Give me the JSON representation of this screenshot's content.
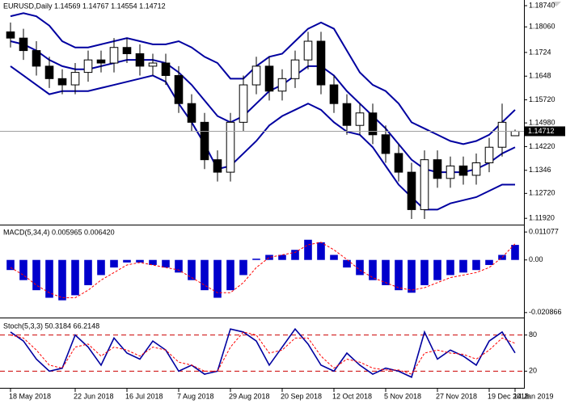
{
  "chart_data": [
    {
      "type": "candlestick",
      "title": "EURUSD,Daily 1.14569 1.14767 1.14554 1.14712",
      "categories": [
        "18 May 2018",
        null,
        null,
        null,
        null,
        "22 Jun 2018",
        null,
        null,
        null,
        "16 Jul 2018",
        null,
        null,
        null,
        "7 Aug 2018",
        null,
        null,
        null,
        "29 Aug 2018",
        null,
        null,
        null,
        "20 Sep 2018",
        null,
        null,
        null,
        "12 Oct 2018",
        null,
        null,
        null,
        "5 Nov 2018",
        null,
        null,
        null,
        "27 Nov 2018",
        null,
        null,
        null,
        "19 Dec 2018",
        null,
        "14 Jan 2019"
      ],
      "open": [
        1.179,
        1.177,
        1.173,
        1.168,
        1.164,
        1.162,
        1.166,
        1.17,
        1.169,
        1.174,
        1.172,
        1.168,
        1.169,
        1.165,
        1.156,
        1.15,
        1.138,
        1.134,
        1.15,
        1.162,
        1.168,
        1.16,
        1.164,
        1.17,
        1.176,
        1.162,
        1.156,
        1.149,
        1.153,
        1.146,
        1.14,
        1.134,
        1.122,
        1.138,
        1.132,
        1.136,
        1.133,
        1.137,
        1.142,
        1.14569
      ],
      "high": [
        1.182,
        1.18,
        1.176,
        1.171,
        1.167,
        1.169,
        1.173,
        1.173,
        1.177,
        1.177,
        1.175,
        1.172,
        1.172,
        1.168,
        1.159,
        1.153,
        1.141,
        1.153,
        1.165,
        1.171,
        1.171,
        1.167,
        1.173,
        1.179,
        1.179,
        1.165,
        1.159,
        1.156,
        1.156,
        1.149,
        1.143,
        1.137,
        1.141,
        1.141,
        1.139,
        1.139,
        1.14,
        1.145,
        1.156,
        1.14767
      ],
      "low": [
        1.174,
        1.17,
        1.165,
        1.161,
        1.159,
        1.159,
        1.163,
        1.166,
        1.166,
        1.169,
        1.165,
        1.165,
        1.162,
        1.153,
        1.147,
        1.135,
        1.131,
        1.131,
        1.147,
        1.159,
        1.157,
        1.157,
        1.161,
        1.167,
        1.159,
        1.153,
        1.146,
        1.146,
        1.143,
        1.137,
        1.131,
        1.119,
        1.119,
        1.129,
        1.129,
        1.13,
        1.13,
        1.134,
        1.139,
        1.14554
      ],
      "close": [
        1.177,
        1.173,
        1.168,
        1.164,
        1.162,
        1.166,
        1.17,
        1.169,
        1.174,
        1.172,
        1.168,
        1.169,
        1.165,
        1.156,
        1.15,
        1.138,
        1.134,
        1.15,
        1.162,
        1.168,
        1.16,
        1.164,
        1.17,
        1.176,
        1.162,
        1.156,
        1.149,
        1.153,
        1.146,
        1.14,
        1.134,
        1.122,
        1.138,
        1.132,
        1.136,
        1.133,
        1.137,
        1.142,
        1.15,
        1.14712
      ],
      "color": "#000000",
      "overlays": [
        {
          "color": "#0000a0",
          "values": [
            1.184,
            1.185,
            1.184,
            1.181,
            1.176,
            1.174,
            1.174,
            1.175,
            1.176,
            1.177,
            1.176,
            1.175,
            1.175,
            1.176,
            1.174,
            1.171,
            1.169,
            1.164,
            1.164,
            1.168,
            1.171,
            1.172,
            1.176,
            1.18,
            1.182,
            1.18,
            1.173,
            1.166,
            1.162,
            1.16,
            1.156,
            1.15,
            1.148,
            1.146,
            1.144,
            1.143,
            1.144,
            1.146,
            1.15,
            1.154
          ]
        },
        {
          "color": "#0000a0",
          "values": [
            1.176,
            1.175,
            1.173,
            1.17,
            1.168,
            1.167,
            1.167,
            1.168,
            1.169,
            1.17,
            1.17,
            1.17,
            1.169,
            1.166,
            1.162,
            1.157,
            1.152,
            1.15,
            1.152,
            1.156,
            1.16,
            1.162,
            1.165,
            1.168,
            1.168,
            1.165,
            1.16,
            1.156,
            1.152,
            1.148,
            1.143,
            1.138,
            1.135,
            1.134,
            1.134,
            1.134,
            1.135,
            1.137,
            1.14,
            1.142
          ]
        },
        {
          "color": "#0000a0",
          "values": [
            1.168,
            1.165,
            1.162,
            1.159,
            1.16,
            1.16,
            1.16,
            1.161,
            1.162,
            1.163,
            1.164,
            1.165,
            1.163,
            1.156,
            1.15,
            1.143,
            1.135,
            1.136,
            1.14,
            1.144,
            1.149,
            1.152,
            1.154,
            1.156,
            1.154,
            1.15,
            1.147,
            1.146,
            1.142,
            1.136,
            1.13,
            1.126,
            1.122,
            1.122,
            1.124,
            1.125,
            1.126,
            1.128,
            1.13,
            1.13
          ]
        }
      ],
      "price_line_color": "#a0a0a0",
      "ylim": [
        1.1177,
        1.1887
      ],
      "yticks": [
        {
          "value": 1.1874,
          "label": "1.18740"
        },
        {
          "value": 1.1806,
          "label": "1.18060"
        },
        1.1724,
        1.1648,
        {
          "value": 1.1572,
          "label": "1.15720"
        },
        {
          "value": 1.1498,
          "label": "1.14980"
        },
        {
          "value": 1.1422,
          "label": "1.14220"
        },
        1.1346,
        {
          "value": 1.1272,
          "label": "1.12720"
        },
        {
          "value": 1.1192,
          "label": "1.11920"
        }
      ]
    },
    {
      "type": "bar",
      "title": "MACD(5,34,4) 0.005965 0.006420",
      "series": [
        {
          "type": "bar",
          "color": "#0000cc",
          "values": [
            -0.004,
            -0.008,
            -0.012,
            -0.015,
            -0.016,
            -0.014,
            -0.01,
            -0.006,
            -0.003,
            -0.001,
            -0.001,
            -0.002,
            -0.003,
            -0.005,
            -0.008,
            -0.012,
            -0.015,
            -0.012,
            -0.006,
            0.0005,
            0.002,
            0.002,
            0.004,
            0.008,
            0.007,
            0.002,
            -0.003,
            -0.006,
            -0.008,
            -0.01,
            -0.012,
            -0.013,
            -0.01,
            -0.008,
            -0.006,
            -0.005,
            -0.004,
            -0.002,
            0.002,
            0.005965
          ]
        },
        {
          "type": "line",
          "color": "#ff0000",
          "dash": true,
          "values": [
            -0.003,
            -0.006,
            -0.01,
            -0.013,
            -0.015,
            -0.015,
            -0.012,
            -0.008,
            -0.005,
            -0.002,
            -0.001,
            -0.002,
            -0.003,
            -0.004,
            -0.007,
            -0.01,
            -0.013,
            -0.013,
            -0.009,
            -0.003,
            0.001,
            0.002,
            0.003,
            0.006,
            0.007,
            0.004,
            0.0002,
            -0.004,
            -0.007,
            -0.009,
            -0.011,
            -0.012,
            -0.011,
            -0.009,
            -0.007,
            -0.006,
            -0.005,
            -0.003,
            0.001,
            0.00642
          ]
        }
      ],
      "ylim": [
        -0.0222,
        0.0124
      ],
      "yticks": [
        0.011077,
        {
          "value": 0,
          "label": "0.00"
        },
        -0.020866
      ]
    },
    {
      "type": "line",
      "title": "Stoch(5,3,3) 50.3184 66.2148",
      "series": [
        {
          "color": "#0000a0",
          "values": [
            85,
            70,
            40,
            20,
            25,
            80,
            60,
            30,
            75,
            50,
            40,
            70,
            55,
            20,
            30,
            15,
            20,
            90,
            85,
            70,
            30,
            60,
            90,
            65,
            30,
            20,
            50,
            30,
            15,
            25,
            20,
            10,
            85,
            40,
            55,
            45,
            30,
            70,
            85,
            50.3184
          ]
        },
        {
          "color": "#ff0000",
          "dash": true,
          "values": [
            80,
            75,
            55,
            30,
            25,
            60,
            65,
            45,
            60,
            55,
            45,
            60,
            55,
            35,
            30,
            20,
            20,
            60,
            85,
            80,
            50,
            55,
            75,
            75,
            45,
            25,
            40,
            35,
            25,
            22,
            22,
            15,
            50,
            55,
            50,
            48,
            40,
            55,
            75,
            66.2148
          ]
        }
      ],
      "ylim": [
        -5,
        105
      ],
      "yticks": [
        80,
        20
      ],
      "grid": true,
      "grid_color": "#cc0000"
    }
  ]
}
